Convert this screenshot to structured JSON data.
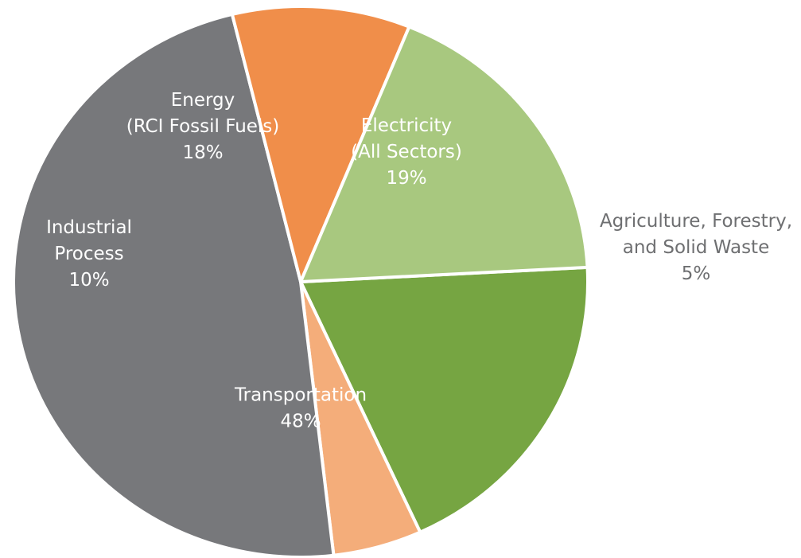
{
  "chart_data": {
    "type": "pie",
    "slices": [
      {
        "name": "Electricity (All Sectors)",
        "value": 19,
        "color": "#76a542",
        "text_color": "#ffffff",
        "label_lines": [
          "Electricity",
          "(All Sectors)",
          "19%"
        ]
      },
      {
        "name": "Agriculture, Forestry, and Solid Waste",
        "value": 5,
        "color": "#f4ad7a",
        "text_color": "#6e6f71",
        "label_lines": [
          "Agriculture, Forestry,",
          "and Solid Waste",
          "5%"
        ]
      },
      {
        "name": "Transportation",
        "value": 48,
        "color": "#77787b",
        "text_color": "#ffffff",
        "label_lines": [
          "Transportation",
          "48%"
        ]
      },
      {
        "name": "Industrial Process",
        "value": 10,
        "color": "#f08e4a",
        "text_color": "#ffffff",
        "label_lines": [
          "Industrial",
          "Process",
          "10%"
        ]
      },
      {
        "name": "Energy (RCI Fossil Fuels)",
        "value": 18,
        "color": "#a8c87f",
        "text_color": "#ffffff",
        "label_lines": [
          "Energy",
          "(RCI Fossil Fuels)",
          "18%"
        ]
      }
    ],
    "start_angle_deg": 3,
    "direction": "clockwise",
    "legend": "none"
  }
}
